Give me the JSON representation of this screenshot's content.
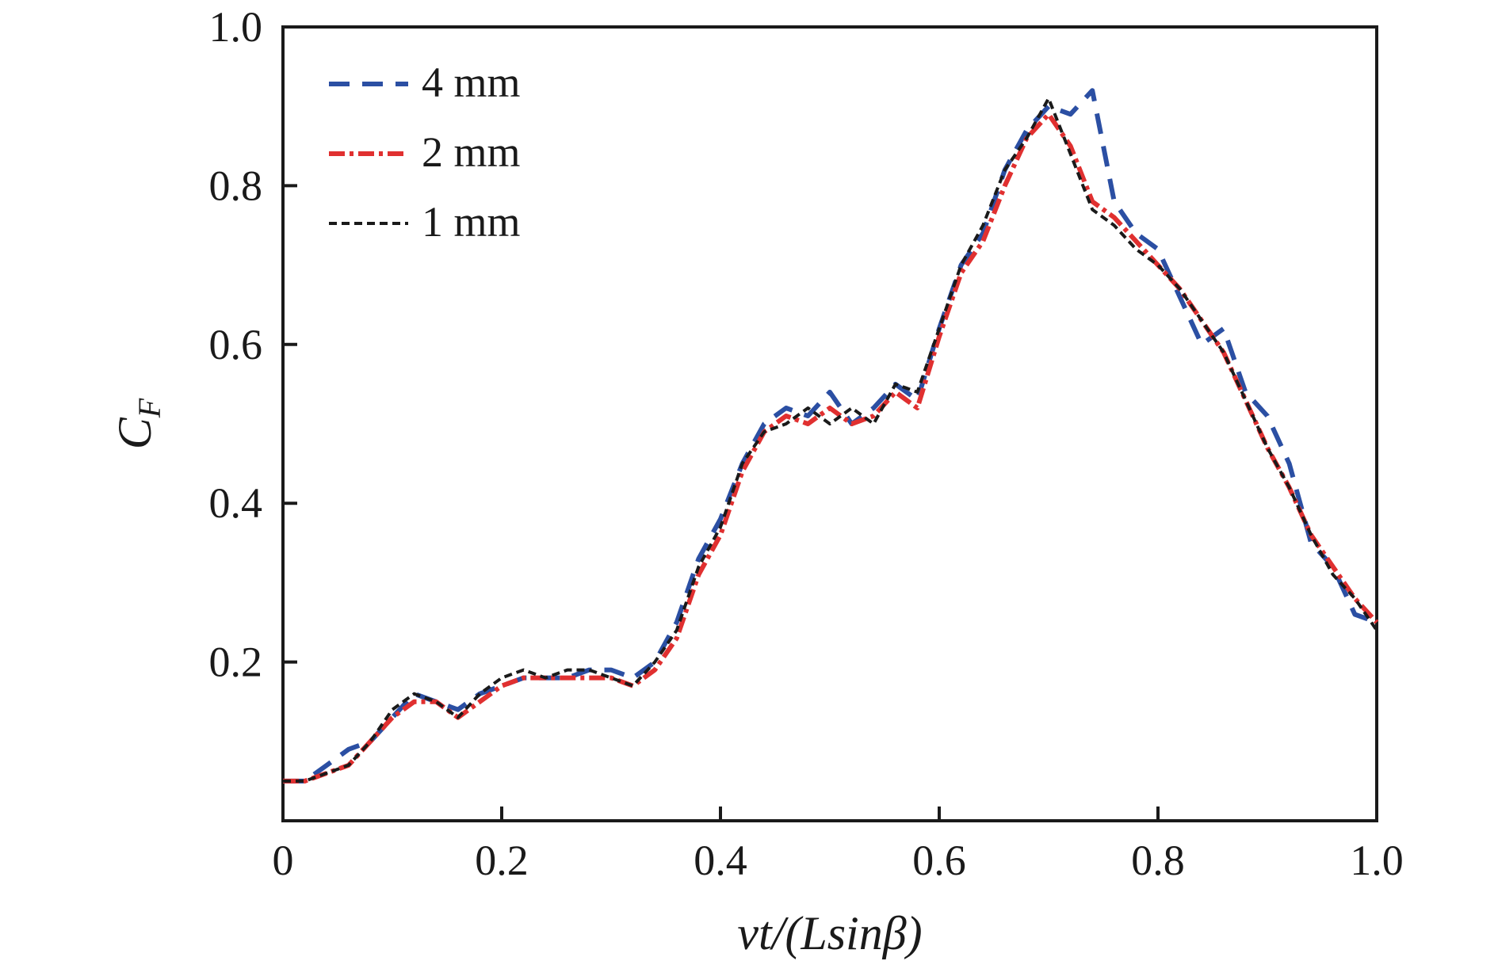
{
  "chart_data": {
    "type": "line",
    "title": "",
    "xlabel": "vt/(Lsinβ)",
    "ylabel": "C_F",
    "ylabel_main": "C",
    "ylabel_sub": "F",
    "xlim": [
      0,
      1.0
    ],
    "ylim": [
      0,
      1.0
    ],
    "x_ticks": [
      0.2,
      0.4,
      0.6,
      0.8
    ],
    "x_tick_labels": [
      "0",
      "0.2",
      "0.4",
      "0.6",
      "0.8",
      "1.0"
    ],
    "y_ticks": [
      0.2,
      0.4,
      0.6,
      0.8
    ],
    "y_tick_labels": [
      "0.2",
      "0.4",
      "0.6",
      "0.8",
      "1.0"
    ],
    "grid": false,
    "legend_position": "top-left",
    "x": [
      0.0,
      0.02,
      0.04,
      0.06,
      0.08,
      0.1,
      0.12,
      0.14,
      0.16,
      0.18,
      0.2,
      0.22,
      0.24,
      0.26,
      0.28,
      0.3,
      0.32,
      0.34,
      0.36,
      0.38,
      0.4,
      0.42,
      0.44,
      0.46,
      0.48,
      0.5,
      0.52,
      0.54,
      0.56,
      0.58,
      0.6,
      0.62,
      0.64,
      0.66,
      0.68,
      0.7,
      0.72,
      0.74,
      0.76,
      0.78,
      0.8,
      0.82,
      0.84,
      0.86,
      0.88,
      0.9,
      0.92,
      0.94,
      0.96,
      0.98,
      1.0
    ],
    "series": [
      {
        "name": "4 mm",
        "color": "#2b4fa3",
        "dash": "26,16",
        "width": 6,
        "values": [
          0.05,
          0.05,
          0.07,
          0.09,
          0.1,
          0.13,
          0.16,
          0.15,
          0.14,
          0.16,
          0.17,
          0.18,
          0.18,
          0.18,
          0.19,
          0.19,
          0.18,
          0.2,
          0.25,
          0.33,
          0.38,
          0.45,
          0.5,
          0.52,
          0.51,
          0.54,
          0.5,
          0.52,
          0.55,
          0.53,
          0.62,
          0.7,
          0.74,
          0.82,
          0.87,
          0.9,
          0.89,
          0.92,
          0.78,
          0.74,
          0.72,
          0.66,
          0.6,
          0.62,
          0.54,
          0.51,
          0.45,
          0.35,
          0.32,
          0.26,
          0.25
        ]
      },
      {
        "name": "2 mm",
        "color": "#e03030",
        "dash": "20,6,5,6",
        "width": 6,
        "values": [
          0.05,
          0.05,
          0.06,
          0.07,
          0.1,
          0.13,
          0.15,
          0.15,
          0.13,
          0.15,
          0.17,
          0.18,
          0.18,
          0.18,
          0.18,
          0.18,
          0.17,
          0.19,
          0.23,
          0.31,
          0.36,
          0.44,
          0.49,
          0.51,
          0.5,
          0.52,
          0.5,
          0.51,
          0.54,
          0.52,
          0.61,
          0.69,
          0.73,
          0.8,
          0.86,
          0.89,
          0.85,
          0.78,
          0.76,
          0.73,
          0.7,
          0.67,
          0.63,
          0.59,
          0.53,
          0.47,
          0.42,
          0.36,
          0.32,
          0.28,
          0.25
        ]
      },
      {
        "name": "1 mm",
        "color": "#1a1a1a",
        "dash": "10,6",
        "width": 4,
        "values": [
          0.05,
          0.05,
          0.06,
          0.07,
          0.1,
          0.14,
          0.16,
          0.15,
          0.13,
          0.16,
          0.18,
          0.19,
          0.18,
          0.19,
          0.19,
          0.18,
          0.17,
          0.2,
          0.24,
          0.32,
          0.37,
          0.45,
          0.49,
          0.5,
          0.52,
          0.5,
          0.52,
          0.5,
          0.55,
          0.54,
          0.62,
          0.7,
          0.75,
          0.82,
          0.86,
          0.91,
          0.84,
          0.77,
          0.75,
          0.72,
          0.7,
          0.67,
          0.63,
          0.59,
          0.53,
          0.47,
          0.42,
          0.36,
          0.31,
          0.28,
          0.24
        ]
      }
    ]
  }
}
